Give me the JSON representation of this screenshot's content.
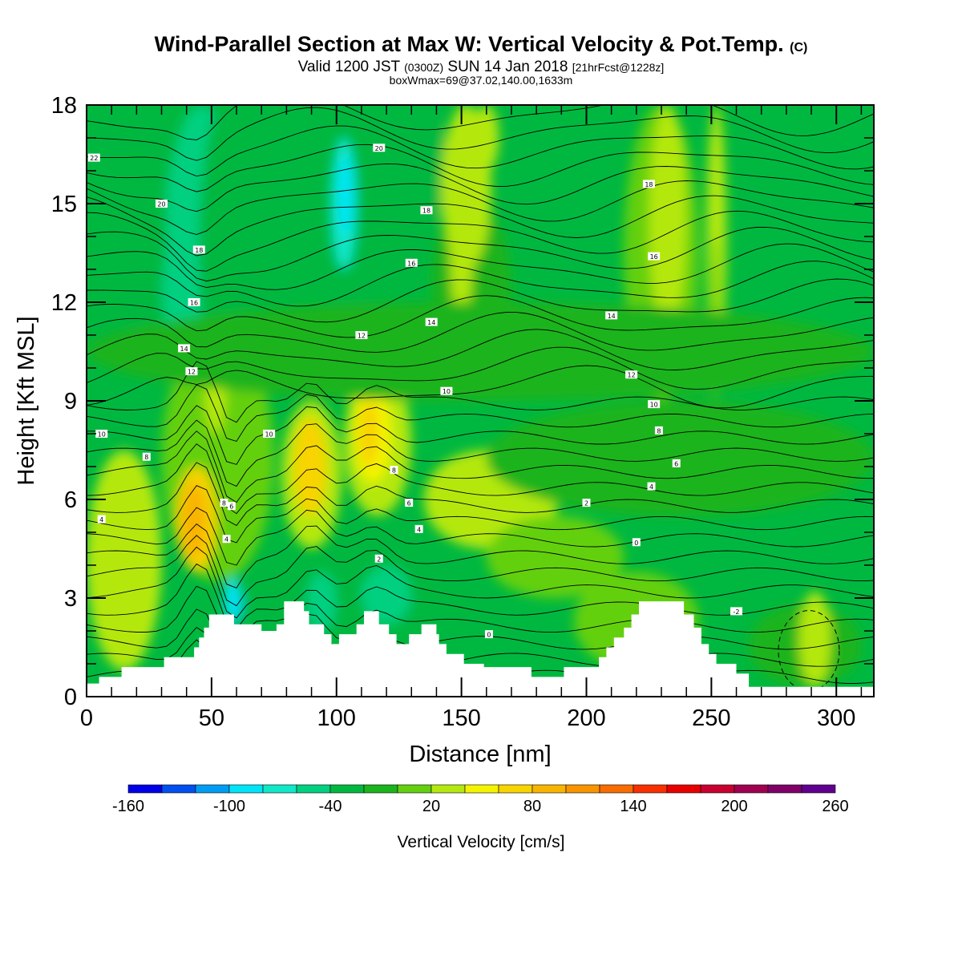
{
  "header": {
    "title": "Wind-Parallel Section at Max W: Vertical Velocity & Pot.Temp.",
    "title_mark": "(C)",
    "valid_prefix": "Valid 1200 JST",
    "valid_zulu": "(0300Z)",
    "valid_date": "SUN 14 Jan 2018",
    "forecast": "[21hrFcst@1228z]",
    "boxwmax": "boxWmax=69@37.02,140.00,1633m"
  },
  "chart_data": {
    "type": "heatmap",
    "xlabel": "Distance [nm]",
    "ylabel": "Height [Kft MSL]",
    "xlim": [
      0,
      315
    ],
    "ylim": [
      0,
      18
    ],
    "x_ticks": [
      0,
      50,
      100,
      150,
      200,
      250,
      300
    ],
    "y_ticks": [
      0,
      3,
      6,
      9,
      12,
      15,
      18
    ],
    "colorbar": {
      "label": "Vertical Velocity [cm/s]",
      "tick_labels": [
        "-160",
        "-100",
        "-40",
        "20",
        "80",
        "140",
        "200",
        "260"
      ],
      "levels": [
        -160,
        -140,
        -120,
        -100,
        -80,
        -60,
        -40,
        -20,
        0,
        20,
        40,
        60,
        80,
        100,
        120,
        140,
        160,
        180,
        200,
        220,
        240,
        260
      ],
      "colors": [
        "#0000e8",
        "#0050f0",
        "#009cf4",
        "#00e4f8",
        "#10e8c8",
        "#00d080",
        "#00b840",
        "#1cb41c",
        "#64d010",
        "#b4e810",
        "#f4f400",
        "#f8d400",
        "#f8b400",
        "#f89400",
        "#f86c00",
        "#f83000",
        "#e80000",
        "#c80030",
        "#a00050",
        "#800068",
        "#600090"
      ]
    },
    "terrain": [
      [
        0,
        0.4
      ],
      [
        5,
        0.6
      ],
      [
        13,
        0.6
      ],
      [
        14,
        0.9
      ],
      [
        30,
        0.9
      ],
      [
        31,
        1.2
      ],
      [
        42,
        1.2
      ],
      [
        43,
        1.5
      ],
      [
        44,
        1.5
      ],
      [
        45,
        1.8
      ],
      [
        46,
        1.8
      ],
      [
        47,
        2.1
      ],
      [
        48,
        2.1
      ],
      [
        49,
        2.5
      ],
      [
        58,
        2.5
      ],
      [
        59,
        2.2
      ],
      [
        69,
        2.2
      ],
      [
        70,
        2.0
      ],
      [
        75,
        2.0
      ],
      [
        76,
        2.2
      ],
      [
        78,
        2.2
      ],
      [
        79,
        2.9
      ],
      [
        86,
        2.9
      ],
      [
        87,
        2.6
      ],
      [
        88,
        2.6
      ],
      [
        89,
        2.2
      ],
      [
        94,
        2.2
      ],
      [
        95,
        1.9
      ],
      [
        97,
        1.9
      ],
      [
        98,
        1.6
      ],
      [
        100,
        1.6
      ],
      [
        101,
        1.9
      ],
      [
        107,
        1.9
      ],
      [
        108,
        2.2
      ],
      [
        110,
        2.2
      ],
      [
        111,
        2.6
      ],
      [
        116,
        2.6
      ],
      [
        117,
        2.2
      ],
      [
        120,
        2.2
      ],
      [
        121,
        1.9
      ],
      [
        123,
        1.9
      ],
      [
        124,
        1.6
      ],
      [
        128,
        1.6
      ],
      [
        129,
        1.9
      ],
      [
        133,
        1.9
      ],
      [
        134,
        2.2
      ],
      [
        139,
        2.2
      ],
      [
        140,
        1.9
      ],
      [
        141,
        1.6
      ],
      [
        143,
        1.6
      ],
      [
        144,
        1.3
      ],
      [
        150,
        1.3
      ],
      [
        151,
        1.0
      ],
      [
        158,
        1.0
      ],
      [
        159,
        0.9
      ],
      [
        177,
        0.9
      ],
      [
        178,
        0.6
      ],
      [
        190,
        0.6
      ],
      [
        191,
        0.9
      ],
      [
        204,
        0.9
      ],
      [
        205,
        1.2
      ],
      [
        207,
        1.2
      ],
      [
        208,
        1.5
      ],
      [
        210,
        1.5
      ],
      [
        211,
        1.8
      ],
      [
        214,
        1.8
      ],
      [
        215,
        2.1
      ],
      [
        217,
        2.1
      ],
      [
        218,
        2.5
      ],
      [
        220,
        2.5
      ],
      [
        221,
        2.9
      ],
      [
        238,
        2.9
      ],
      [
        239,
        2.5
      ],
      [
        242,
        2.5
      ],
      [
        243,
        2.1
      ],
      [
        245,
        2.1
      ],
      [
        246,
        1.6
      ],
      [
        248,
        1.6
      ],
      [
        249,
        1.3
      ],
      [
        251,
        1.3
      ],
      [
        252,
        1.0
      ],
      [
        259,
        1.0
      ],
      [
        260,
        0.7
      ],
      [
        264,
        0.7
      ],
      [
        265,
        0.3
      ],
      [
        315,
        0.3
      ]
    ],
    "w_cells": [
      {
        "x": [
          40,
          50
        ],
        "y": [
          12.5,
          18
        ],
        "w": -150
      },
      {
        "x": [
          42,
          49
        ],
        "y": [
          14,
          18
        ],
        "w": -170
      },
      {
        "x": [
          37,
          55
        ],
        "y": [
          10,
          18
        ],
        "w": -100
      },
      {
        "x": [
          30,
          62
        ],
        "y": [
          8,
          18
        ],
        "w": -60
      },
      {
        "x": [
          45,
          65
        ],
        "y": [
          9,
          18
        ],
        "w": -40
      },
      {
        "x": [
          10,
          32
        ],
        "y": [
          11,
          18
        ],
        "w": -30
      },
      {
        "x": [
          75,
          88
        ],
        "y": [
          12,
          18
        ],
        "w": -40
      },
      {
        "x": [
          95,
          115
        ],
        "y": [
          9,
          18
        ],
        "w": -30
      },
      {
        "x": [
          98,
          108
        ],
        "y": [
          13,
          17
        ],
        "w": -80
      },
      {
        "x": [
          101,
          106
        ],
        "y": [
          14,
          16.5
        ],
        "w": -100
      },
      {
        "x": [
          115,
          145
        ],
        "y": [
          14,
          18
        ],
        "w": -25
      },
      {
        "x": [
          55,
          140
        ],
        "y": [
          0.8,
          3.6
        ],
        "w": -30
      },
      {
        "x": [
          55,
          62
        ],
        "y": [
          2.3,
          3.6
        ],
        "w": -85
      },
      {
        "x": [
          110,
          130
        ],
        "y": [
          2.2,
          4.0
        ],
        "w": -60
      },
      {
        "x": [
          88,
          100
        ],
        "y": [
          2.0,
          3.8
        ],
        "w": -60
      },
      {
        "x": [
          138,
          170
        ],
        "y": [
          10,
          15
        ],
        "w": -20
      },
      {
        "x": [
          145,
          155
        ],
        "y": [
          11,
          18
        ],
        "w": 30
      },
      {
        "x": [
          142,
          162
        ],
        "y": [
          13,
          18
        ],
        "w": 25
      },
      {
        "x": [
          155,
          165
        ],
        "y": [
          16,
          18
        ],
        "w": 30
      },
      {
        "x": [
          215,
          245
        ],
        "y": [
          9,
          18
        ],
        "w": 10
      },
      {
        "x": [
          225,
          240
        ],
        "y": [
          11,
          18
        ],
        "w": 20
      },
      {
        "x": [
          248,
          256
        ],
        "y": [
          10,
          18
        ],
        "w": 20
      },
      {
        "x": [
          250,
          253
        ],
        "y": [
          9,
          14
        ],
        "w": 0
      },
      {
        "x": [
          30,
          75
        ],
        "y": [
          3.5,
          11
        ],
        "w": 15
      },
      {
        "x": [
          36,
          52
        ],
        "y": [
          3.8,
          7
        ],
        "w": 65
      },
      {
        "x": [
          38,
          48
        ],
        "y": [
          4.2,
          6.5
        ],
        "w": 80
      },
      {
        "x": [
          47,
          56
        ],
        "y": [
          8,
          11
        ],
        "w": 30
      },
      {
        "x": [
          78,
          102
        ],
        "y": [
          4.5,
          9
        ],
        "w": 30
      },
      {
        "x": [
          83,
          96
        ],
        "y": [
          5.5,
          8.5
        ],
        "w": 60
      },
      {
        "x": [
          86,
          93
        ],
        "y": [
          6.5,
          8
        ],
        "w": 70
      },
      {
        "x": [
          103,
          130
        ],
        "y": [
          5.5,
          10
        ],
        "w": 30
      },
      {
        "x": [
          107,
          122
        ],
        "y": [
          6.5,
          9.5
        ],
        "w": 55
      },
      {
        "x": [
          109,
          117
        ],
        "y": [
          7.0,
          9.0
        ],
        "w": 70
      },
      {
        "x": [
          135,
          185
        ],
        "y": [
          4.5,
          7.5
        ],
        "w": 20
      },
      {
        "x": [
          170,
          188
        ],
        "y": [
          4.8,
          6.8
        ],
        "w": 35
      },
      {
        "x": [
          160,
          215
        ],
        "y": [
          3.0,
          5.5
        ],
        "w": 12
      },
      {
        "x": [
          0,
          30
        ],
        "y": [
          0.8,
          7.5
        ],
        "w": 20
      },
      {
        "x": [
          195,
          245
        ],
        "y": [
          0.8,
          3.8
        ],
        "w": 15
      },
      {
        "x": [
          265,
          310
        ],
        "y": [
          0.3,
          2.8
        ],
        "w": -20
      },
      {
        "x": [
          285,
          298
        ],
        "y": [
          0.3,
          3.2
        ],
        "w": 25
      },
      {
        "x": [
          0,
          315
        ],
        "y": [
          9,
          12
        ],
        "w": -15
      },
      {
        "x": [
          160,
          315
        ],
        "y": [
          5.5,
          9
        ],
        "w": -15
      }
    ],
    "contour_labels": [
      {
        "x": 3,
        "y": 16.4,
        "text": "22"
      },
      {
        "x": 30,
        "y": 15.0,
        "text": "20"
      },
      {
        "x": 45,
        "y": 13.6,
        "text": "18"
      },
      {
        "x": 43,
        "y": 12.0,
        "text": "16"
      },
      {
        "x": 39,
        "y": 10.6,
        "text": "14"
      },
      {
        "x": 42,
        "y": 9.9,
        "text": "12"
      },
      {
        "x": 6,
        "y": 8.0,
        "text": "10"
      },
      {
        "x": 24,
        "y": 7.3,
        "text": "8"
      },
      {
        "x": 6,
        "y": 5.4,
        "text": "4"
      },
      {
        "x": 58,
        "y": 5.8,
        "text": "6"
      },
      {
        "x": 55,
        "y": 5.9,
        "text": "8"
      },
      {
        "x": 56,
        "y": 4.8,
        "text": "4"
      },
      {
        "x": 73,
        "y": 8.0,
        "text": "10"
      },
      {
        "x": 117,
        "y": 16.7,
        "text": "20"
      },
      {
        "x": 136,
        "y": 14.8,
        "text": "18"
      },
      {
        "x": 130,
        "y": 13.2,
        "text": "16"
      },
      {
        "x": 138,
        "y": 11.4,
        "text": "14"
      },
      {
        "x": 110,
        "y": 11.0,
        "text": "12"
      },
      {
        "x": 144,
        "y": 9.3,
        "text": "10"
      },
      {
        "x": 123,
        "y": 6.9,
        "text": "8"
      },
      {
        "x": 129,
        "y": 5.9,
        "text": "6"
      },
      {
        "x": 133,
        "y": 5.1,
        "text": "4"
      },
      {
        "x": 117,
        "y": 4.2,
        "text": "2"
      },
      {
        "x": 161,
        "y": 1.9,
        "text": "0"
      },
      {
        "x": 210,
        "y": 11.6,
        "text": "14"
      },
      {
        "x": 218,
        "y": 9.8,
        "text": "12"
      },
      {
        "x": 227,
        "y": 8.9,
        "text": "10"
      },
      {
        "x": 229,
        "y": 8.1,
        "text": "8"
      },
      {
        "x": 236,
        "y": 7.1,
        "text": "6"
      },
      {
        "x": 226,
        "y": 6.4,
        "text": "4"
      },
      {
        "x": 200,
        "y": 5.9,
        "text": "2"
      },
      {
        "x": 220,
        "y": 4.7,
        "text": "0"
      },
      {
        "x": 225,
        "y": 15.6,
        "text": "18"
      },
      {
        "x": 227,
        "y": 13.4,
        "text": "16"
      },
      {
        "x": 260,
        "y": 2.6,
        "text": "-2"
      }
    ]
  }
}
